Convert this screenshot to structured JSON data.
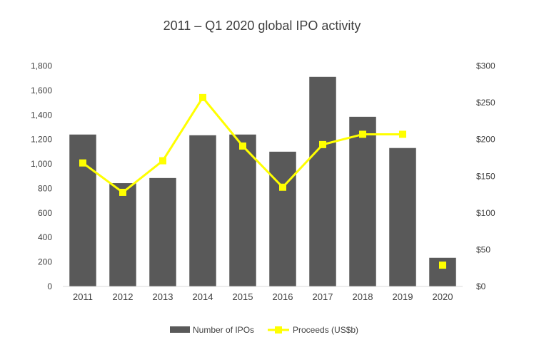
{
  "chart_data": {
    "type": "bar+line",
    "title": "2011 – Q1 2020 global IPO activity",
    "categories": [
      "2011",
      "2012",
      "2013",
      "2014",
      "2015",
      "2016",
      "2017",
      "2018",
      "2019",
      "2020"
    ],
    "series": [
      {
        "name": "Number of IPOs",
        "type": "bar",
        "axis": "left",
        "color": "#595959",
        "values": [
          1240,
          843,
          885,
          1234,
          1240,
          1100,
          1711,
          1385,
          1130,
          234
        ]
      },
      {
        "name": "Proceeds (US$b)",
        "type": "line",
        "axis": "right",
        "color": "#FFFF00",
        "values": [
          168,
          128,
          171,
          257,
          191,
          135,
          193,
          207,
          207,
          29
        ],
        "connected_through": "2019"
      }
    ],
    "left_axis": {
      "range": [
        0,
        1800
      ],
      "ticks": [
        "0",
        "200",
        "400",
        "600",
        "800",
        "1,000",
        "1,200",
        "1,400",
        "1,600",
        "1,800"
      ]
    },
    "right_axis": {
      "range": [
        0,
        300
      ],
      "ticks": [
        "$0",
        "$50",
        "$100",
        "$150",
        "$200",
        "$250",
        "$300"
      ]
    },
    "grid": false,
    "legend": {
      "placement": "bottom",
      "entries": [
        "Number of IPOs",
        "Proceeds (US$b)"
      ]
    }
  }
}
